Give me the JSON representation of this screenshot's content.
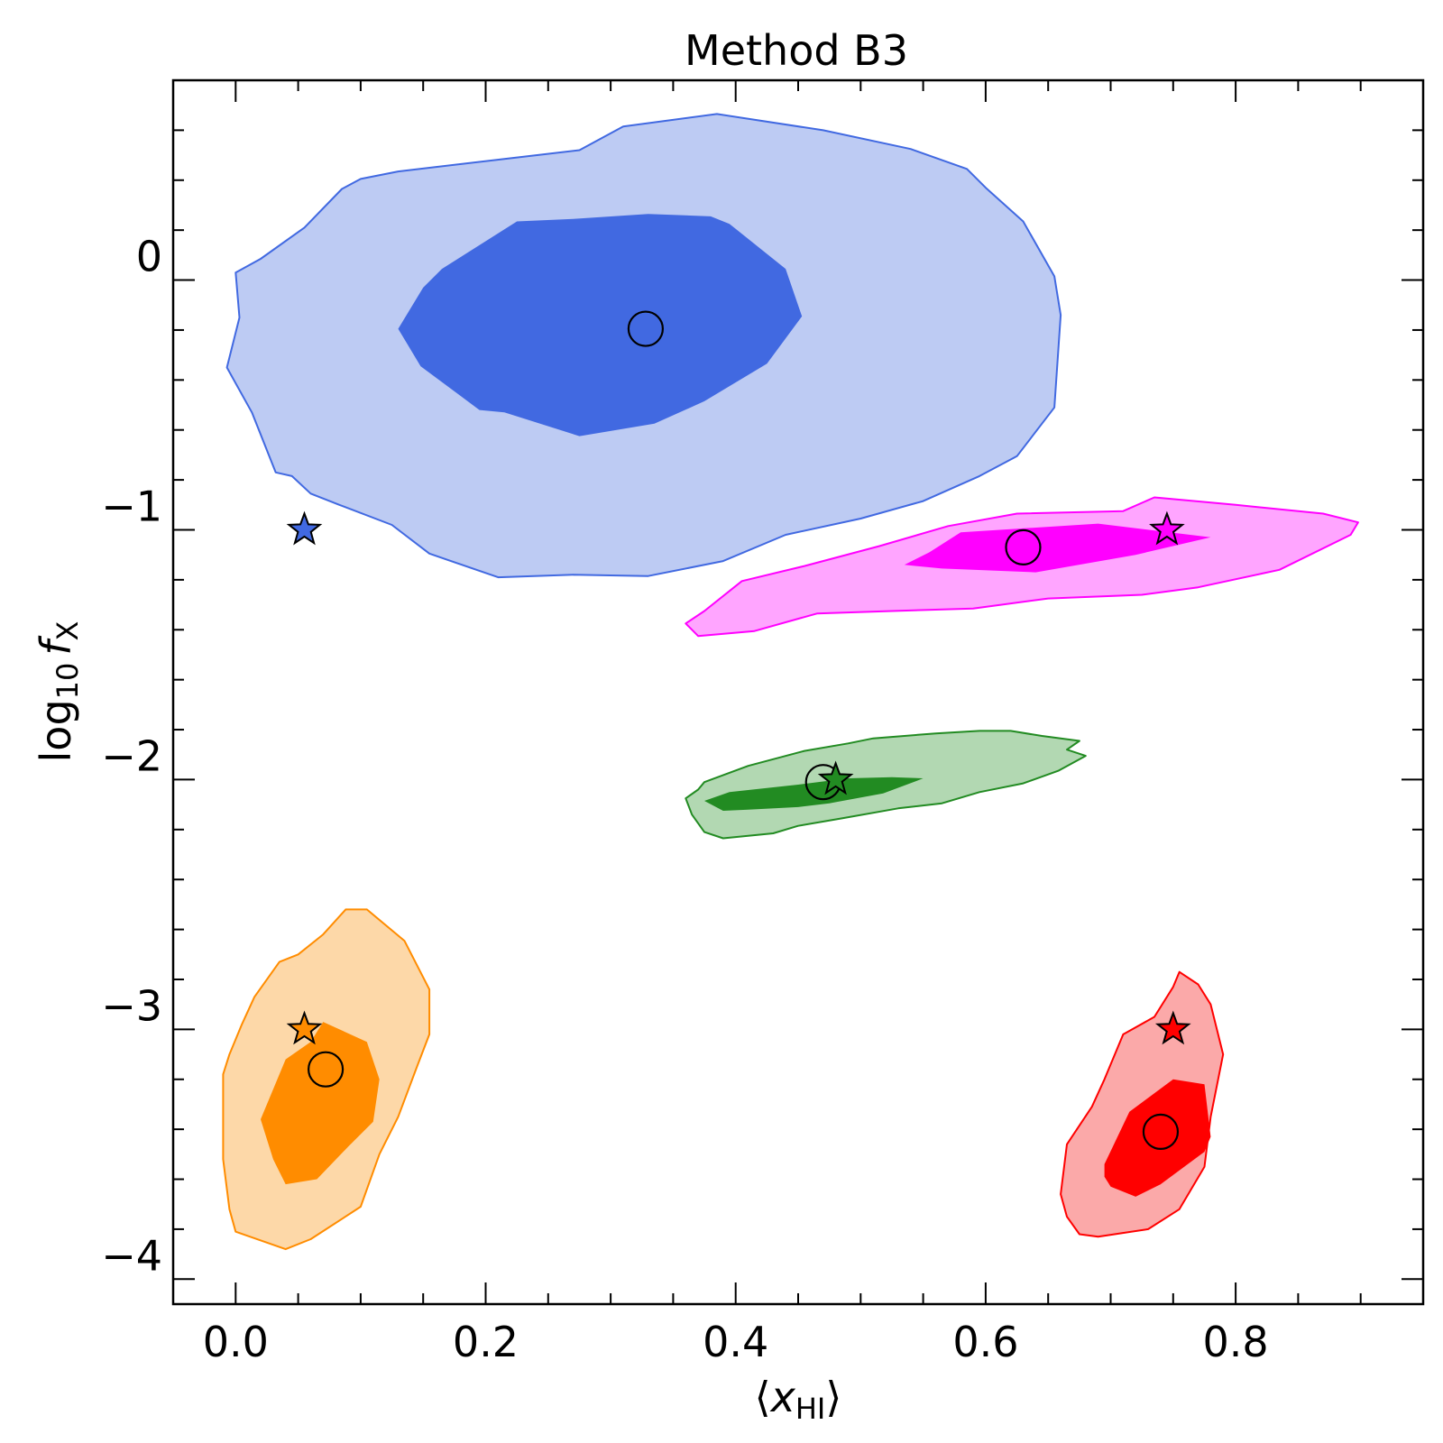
{
  "chart_data": {
    "type": "scatter",
    "title": "Method B3",
    "xlabel": "⟨x_HI⟩",
    "ylabel": "log10 f_X",
    "xlabel_parts": {
      "lang": "⟨",
      "base": "x",
      "sub": "HI",
      "rang": "⟩"
    },
    "ylabel_parts": {
      "prefix": "log",
      "prefix_sub": "10",
      "var": "f",
      "sub": "X"
    },
    "xlim": [
      -0.05,
      0.95
    ],
    "ylim": [
      -4.1,
      0.8
    ],
    "x_ticks": [
      0.0,
      0.2,
      0.4,
      0.6,
      0.8
    ],
    "x_tick_labels": [
      "0.0",
      "0.2",
      "0.4",
      "0.6",
      "0.8"
    ],
    "y_ticks": [
      0,
      -1,
      -2,
      -3,
      -4
    ],
    "y_tick_labels": [
      "0",
      "−1",
      "−2",
      "−3",
      "−4"
    ],
    "x_minor_step": 0.05,
    "y_minor_step": 0.2,
    "grid": false,
    "markers": {
      "truth": "star",
      "estimate": "open-circle"
    },
    "series": [
      {
        "color": "#4169e1",
        "fill_outer": "#bdcbf3",
        "fill_inner": "#4169e1",
        "truth": [
          0.055,
          -1.0
        ],
        "estimate": [
          0.328,
          -0.195
        ],
        "outer": [
          [
            0.31,
            0.615
          ],
          [
            0.385,
            0.665
          ],
          [
            0.47,
            0.6
          ],
          [
            0.54,
            0.525
          ],
          [
            0.585,
            0.445
          ],
          [
            0.6,
            0.37
          ],
          [
            0.63,
            0.235
          ],
          [
            0.655,
            0.015
          ],
          [
            0.66,
            -0.14
          ],
          [
            0.655,
            -0.51
          ],
          [
            0.625,
            -0.705
          ],
          [
            0.595,
            -0.785
          ],
          [
            0.55,
            -0.885
          ],
          [
            0.5,
            -0.955
          ],
          [
            0.44,
            -1.02
          ],
          [
            0.39,
            -1.125
          ],
          [
            0.33,
            -1.185
          ],
          [
            0.27,
            -1.18
          ],
          [
            0.21,
            -1.19
          ],
          [
            0.155,
            -1.095
          ],
          [
            0.125,
            -0.98
          ],
          [
            0.083,
            -0.9
          ],
          [
            0.06,
            -0.855
          ],
          [
            0.045,
            -0.785
          ],
          [
            0.032,
            -0.77
          ],
          [
            0.013,
            -0.53
          ],
          [
            -0.007,
            -0.35
          ],
          [
            0.003,
            -0.15
          ],
          [
            0.0,
            0.03
          ],
          [
            0.02,
            0.085
          ],
          [
            0.055,
            0.21
          ],
          [
            0.085,
            0.365
          ],
          [
            0.1,
            0.405
          ],
          [
            0.13,
            0.435
          ],
          [
            0.215,
            0.485
          ],
          [
            0.275,
            0.52
          ],
          [
            0.31,
            0.615
          ]
        ],
        "inner": [
          [
            0.27,
            0.245
          ],
          [
            0.33,
            0.265
          ],
          [
            0.38,
            0.255
          ],
          [
            0.395,
            0.225
          ],
          [
            0.44,
            0.045
          ],
          [
            0.453,
            -0.145
          ],
          [
            0.425,
            -0.335
          ],
          [
            0.375,
            -0.485
          ],
          [
            0.335,
            -0.575
          ],
          [
            0.275,
            -0.625
          ],
          [
            0.215,
            -0.53
          ],
          [
            0.195,
            -0.52
          ],
          [
            0.148,
            -0.345
          ],
          [
            0.13,
            -0.195
          ],
          [
            0.15,
            -0.03
          ],
          [
            0.165,
            0.045
          ],
          [
            0.225,
            0.235
          ],
          [
            0.27,
            0.245
          ]
        ]
      },
      {
        "color": "#ff00ff",
        "fill_outer": "#ffa5ff",
        "fill_inner": "#ff00ff",
        "truth": [
          0.745,
          -1.0
        ],
        "estimate": [
          0.63,
          -1.07
        ],
        "outer": [
          [
            0.36,
            -1.375
          ],
          [
            0.375,
            -1.325
          ],
          [
            0.405,
            -1.205
          ],
          [
            0.455,
            -1.145
          ],
          [
            0.515,
            -1.065
          ],
          [
            0.57,
            -0.985
          ],
          [
            0.625,
            -0.935
          ],
          [
            0.71,
            -0.925
          ],
          [
            0.735,
            -0.87
          ],
          [
            0.8,
            -0.9
          ],
          [
            0.87,
            -0.935
          ],
          [
            0.898,
            -0.97
          ],
          [
            0.892,
            -1.02
          ],
          [
            0.835,
            -1.16
          ],
          [
            0.77,
            -1.23
          ],
          [
            0.725,
            -1.26
          ],
          [
            0.65,
            -1.275
          ],
          [
            0.59,
            -1.315
          ],
          [
            0.525,
            -1.325
          ],
          [
            0.465,
            -1.335
          ],
          [
            0.415,
            -1.405
          ],
          [
            0.37,
            -1.425
          ],
          [
            0.36,
            -1.375
          ]
        ],
        "inner": [
          [
            0.535,
            -1.14
          ],
          [
            0.555,
            -1.09
          ],
          [
            0.58,
            -1.01
          ],
          [
            0.69,
            -0.975
          ],
          [
            0.78,
            -1.03
          ],
          [
            0.72,
            -1.1
          ],
          [
            0.64,
            -1.17
          ],
          [
            0.565,
            -1.155
          ],
          [
            0.535,
            -1.14
          ]
        ]
      },
      {
        "color": "#228b22",
        "fill_outer": "#b2d8b2",
        "fill_inner": "#228b22",
        "truth": [
          0.48,
          -2.0
        ],
        "estimate": [
          0.47,
          -2.01
        ],
        "outer": [
          [
            0.37,
            -2.04
          ],
          [
            0.375,
            -2.01
          ],
          [
            0.41,
            -1.945
          ],
          [
            0.455,
            -1.885
          ],
          [
            0.49,
            -1.855
          ],
          [
            0.51,
            -1.835
          ],
          [
            0.56,
            -1.815
          ],
          [
            0.595,
            -1.805
          ],
          [
            0.62,
            -1.805
          ],
          [
            0.645,
            -1.825
          ],
          [
            0.675,
            -1.845
          ],
          [
            0.665,
            -1.88
          ],
          [
            0.68,
            -1.905
          ],
          [
            0.658,
            -1.965
          ],
          [
            0.63,
            -2.015
          ],
          [
            0.595,
            -2.05
          ],
          [
            0.565,
            -2.095
          ],
          [
            0.53,
            -2.115
          ],
          [
            0.485,
            -2.155
          ],
          [
            0.45,
            -2.185
          ],
          [
            0.43,
            -2.215
          ],
          [
            0.39,
            -2.235
          ],
          [
            0.375,
            -2.21
          ],
          [
            0.365,
            -2.14
          ],
          [
            0.36,
            -2.075
          ],
          [
            0.37,
            -2.04
          ]
        ],
        "inner": [
          [
            0.375,
            -2.085
          ],
          [
            0.395,
            -2.05
          ],
          [
            0.45,
            -2.02
          ],
          [
            0.49,
            -1.995
          ],
          [
            0.525,
            -1.99
          ],
          [
            0.55,
            -1.995
          ],
          [
            0.545,
            -2.005
          ],
          [
            0.518,
            -2.055
          ],
          [
            0.475,
            -2.095
          ],
          [
            0.45,
            -2.11
          ],
          [
            0.41,
            -2.12
          ],
          [
            0.39,
            -2.125
          ],
          [
            0.375,
            -2.085
          ]
        ]
      },
      {
        "color": "#ff8c00",
        "fill_outer": "#fdd8a8",
        "fill_inner": "#ff8c00",
        "truth": [
          0.055,
          -3.0
        ],
        "estimate": [
          0.072,
          -3.16
        ],
        "outer": [
          [
            0.07,
            -2.62
          ],
          [
            0.088,
            -2.52
          ],
          [
            0.105,
            -2.52
          ],
          [
            0.135,
            -2.645
          ],
          [
            0.155,
            -2.84
          ],
          [
            0.155,
            -3.02
          ],
          [
            0.145,
            -3.15
          ],
          [
            0.13,
            -3.35
          ],
          [
            0.115,
            -3.5
          ],
          [
            0.1,
            -3.71
          ],
          [
            0.06,
            -3.84
          ],
          [
            0.04,
            -3.88
          ],
          [
            0.0,
            -3.81
          ],
          [
            -0.005,
            -3.72
          ],
          [
            -0.01,
            -3.52
          ],
          [
            -0.01,
            -3.18
          ],
          [
            -0.005,
            -3.1
          ],
          [
            0.005,
            -2.98
          ],
          [
            0.015,
            -2.87
          ],
          [
            0.035,
            -2.73
          ],
          [
            0.05,
            -2.7
          ],
          [
            0.07,
            -2.62
          ]
        ],
        "inner": [
          [
            0.04,
            -3.12
          ],
          [
            0.06,
            -3.05
          ],
          [
            0.07,
            -2.97
          ],
          [
            0.105,
            -3.05
          ],
          [
            0.115,
            -3.2
          ],
          [
            0.11,
            -3.37
          ],
          [
            0.09,
            -3.47
          ],
          [
            0.065,
            -3.6
          ],
          [
            0.04,
            -3.62
          ],
          [
            0.03,
            -3.52
          ],
          [
            0.02,
            -3.36
          ],
          [
            0.04,
            -3.12
          ]
        ]
      },
      {
        "color": "#ff0000",
        "fill_outer": "#fba9a9",
        "fill_inner": "#ff0000",
        "truth": [
          0.75,
          -3.0
        ],
        "estimate": [
          0.74,
          -3.41
        ],
        "outer": [
          [
            0.75,
            -2.83
          ],
          [
            0.755,
            -2.77
          ],
          [
            0.77,
            -2.82
          ],
          [
            0.78,
            -2.9
          ],
          [
            0.79,
            -3.1
          ],
          [
            0.78,
            -3.35
          ],
          [
            0.775,
            -3.55
          ],
          [
            0.755,
            -3.72
          ],
          [
            0.73,
            -3.8
          ],
          [
            0.69,
            -3.83
          ],
          [
            0.675,
            -3.82
          ],
          [
            0.665,
            -3.75
          ],
          [
            0.66,
            -3.66
          ],
          [
            0.665,
            -3.46
          ],
          [
            0.685,
            -3.31
          ],
          [
            0.695,
            -3.2
          ],
          [
            0.71,
            -3.02
          ],
          [
            0.735,
            -2.95
          ],
          [
            0.75,
            -2.83
          ]
        ],
        "inner": [
          [
            0.75,
            -3.2
          ],
          [
            0.775,
            -3.22
          ],
          [
            0.78,
            -3.43
          ],
          [
            0.775,
            -3.49
          ],
          [
            0.74,
            -3.62
          ],
          [
            0.72,
            -3.67
          ],
          [
            0.7,
            -3.63
          ],
          [
            0.695,
            -3.59
          ],
          [
            0.695,
            -3.54
          ],
          [
            0.715,
            -3.33
          ],
          [
            0.75,
            -3.2
          ]
        ]
      }
    ]
  }
}
